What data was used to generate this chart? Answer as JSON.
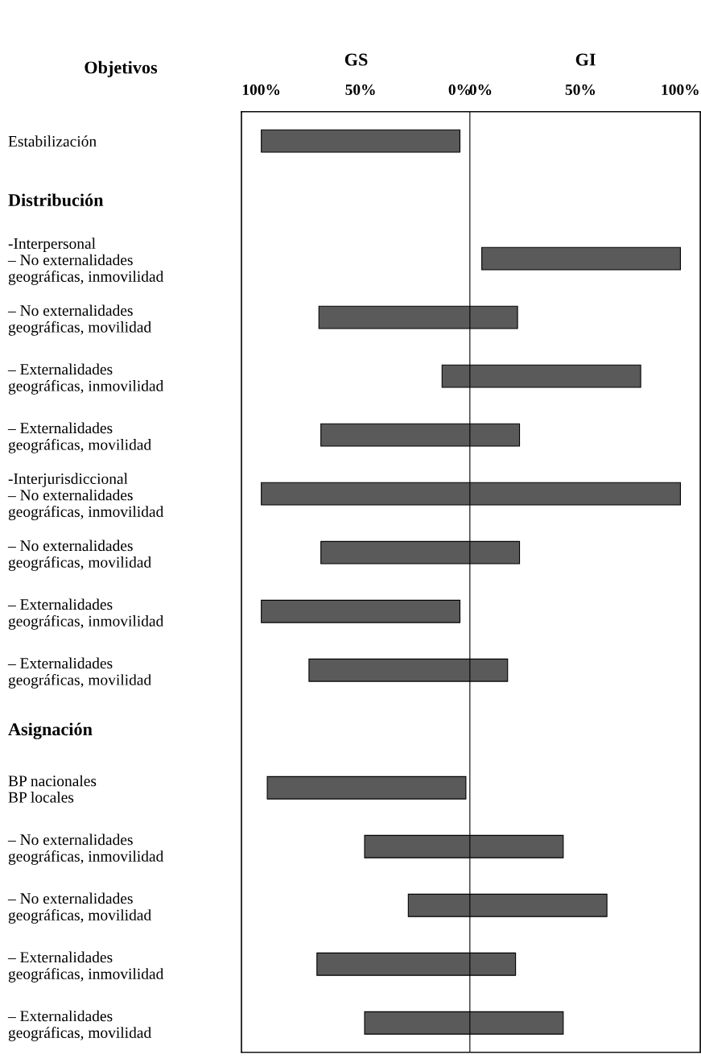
{
  "chart_data": {
    "type": "bar",
    "orientation": "horizontal",
    "ylabel": "Objetivos",
    "annotations": [
      "GS",
      "GI"
    ],
    "categories": [
      "Estabilización",
      "Distribución",
      "-Interpersonal\n– No externalidades\ngeográficas, inmovilidad",
      "– No externalidades\ngeográficas, movilidad",
      "– Externalidades\ngeográficas, inmovilidad",
      "– Externalidades\ngeográficas, movilidad",
      "-Interjurisdiccional\n– No externalidades\ngeográficas, inmovilidad",
      "– No externalidades\ngeográficas, movilidad",
      "– Externalidades\ngeográficas, inmovilidad",
      "– Externalidades\ngeográficas, movilidad",
      "Asignación",
      "BP nacionales\nBP locales",
      "– No externalidades\ngeográficas, inmovilidad",
      "– No externalidades\ngeográficas, movilidad",
      "– Externalidades\ngeográficas, inmovilidad",
      "– Externalidades\ngeográficas, movilidad"
    ],
    "base": [
      0,
      null,
      -111,
      -29,
      -91,
      -30,
      -111,
      -30,
      0,
      -24,
      null,
      -3,
      -52,
      -74,
      -28,
      -52
    ],
    "values": [
      100,
      null,
      100,
      100,
      100,
      100,
      211,
      100,
      100,
      100,
      null,
      100,
      100,
      100,
      100,
      100
    ],
    "color": "#5a5a5a",
    "xlim": [
      110,
      -121
    ],
    "xticks": [
      {
        "value": 100,
        "label": "100%"
      },
      {
        "value": 50,
        "label": "50%"
      },
      {
        "value": 0,
        "label": "0%"
      }
    ],
    "x2lim": [
      -120,
      110
    ],
    "x2ticks": [
      {
        "value": 0,
        "label": "0%"
      },
      {
        "value": 50,
        "label": "50%"
      },
      {
        "value": 100,
        "label": "100%"
      }
    ],
    "ref_lines": [
      {
        "axis": "x",
        "value": -5,
        "color": "#000000"
      }
    ],
    "grid": false,
    "legend": false
  }
}
